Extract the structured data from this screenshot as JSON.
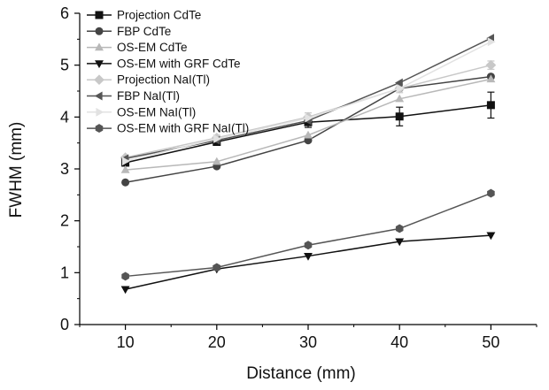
{
  "chart_data": {
    "type": "line",
    "title": "",
    "xlabel": "Distance (mm)",
    "ylabel": "FWHM (mm)",
    "xlim": [
      5,
      55
    ],
    "ylim": [
      0,
      6
    ],
    "xticks": [
      "10",
      "20",
      "30",
      "40",
      "50"
    ],
    "yticks": [
      "0",
      "1",
      "2",
      "3",
      "4",
      "5",
      "6"
    ],
    "x": [
      10,
      20,
      30,
      40,
      50
    ],
    "grid": false,
    "legend_position": "top-left",
    "series": [
      {
        "name": "Projection CdTe",
        "values": [
          3.12,
          3.52,
          3.9,
          4.01,
          4.23
        ],
        "errors": [
          0.05,
          0.06,
          0.1,
          0.18,
          0.25
        ],
        "color": "#111111",
        "marker": "square"
      },
      {
        "name": "FBP CdTe",
        "values": [
          2.74,
          3.05,
          3.55,
          4.55,
          4.78
        ],
        "errors": [
          0,
          0,
          0,
          0,
          0
        ],
        "color": "#444444",
        "marker": "circle"
      },
      {
        "name": "OS-EM CdTe",
        "values": [
          2.98,
          3.14,
          3.65,
          4.35,
          4.73
        ],
        "errors": [
          0,
          0,
          0,
          0,
          0
        ],
        "color": "#b8b8b8",
        "marker": "triangle-up"
      },
      {
        "name": "OS-EM with GRF CdTe",
        "values": [
          0.68,
          1.07,
          1.32,
          1.6,
          1.72
        ],
        "errors": [
          0,
          0,
          0,
          0,
          0
        ],
        "color": "#111111",
        "marker": "triangle-down"
      },
      {
        "name": "Projection NaI(Tl)",
        "values": [
          3.22,
          3.6,
          4.0,
          4.55,
          5.0
        ],
        "errors": [
          0,
          0.05,
          0.08,
          0.08,
          0.08
        ],
        "color": "#c8c8c8",
        "marker": "diamond"
      },
      {
        "name": "FBP NaI(Tl)",
        "values": [
          3.2,
          3.55,
          3.93,
          4.66,
          5.52
        ],
        "errors": [
          0,
          0,
          0,
          0,
          0
        ],
        "color": "#555555",
        "marker": "triangle-left"
      },
      {
        "name": "OS-EM NaI(Tl)",
        "values": [
          3.15,
          3.58,
          3.98,
          4.55,
          5.45
        ],
        "errors": [
          0,
          0,
          0,
          0,
          0
        ],
        "color": "#e2e2e2",
        "marker": "triangle-right"
      },
      {
        "name": "OS-EM with GRF NaI(Tl)",
        "values": [
          0.93,
          1.1,
          1.53,
          1.85,
          2.53
        ],
        "errors": [
          0,
          0,
          0,
          0,
          0
        ],
        "color": "#555555",
        "marker": "hexagon"
      }
    ]
  }
}
